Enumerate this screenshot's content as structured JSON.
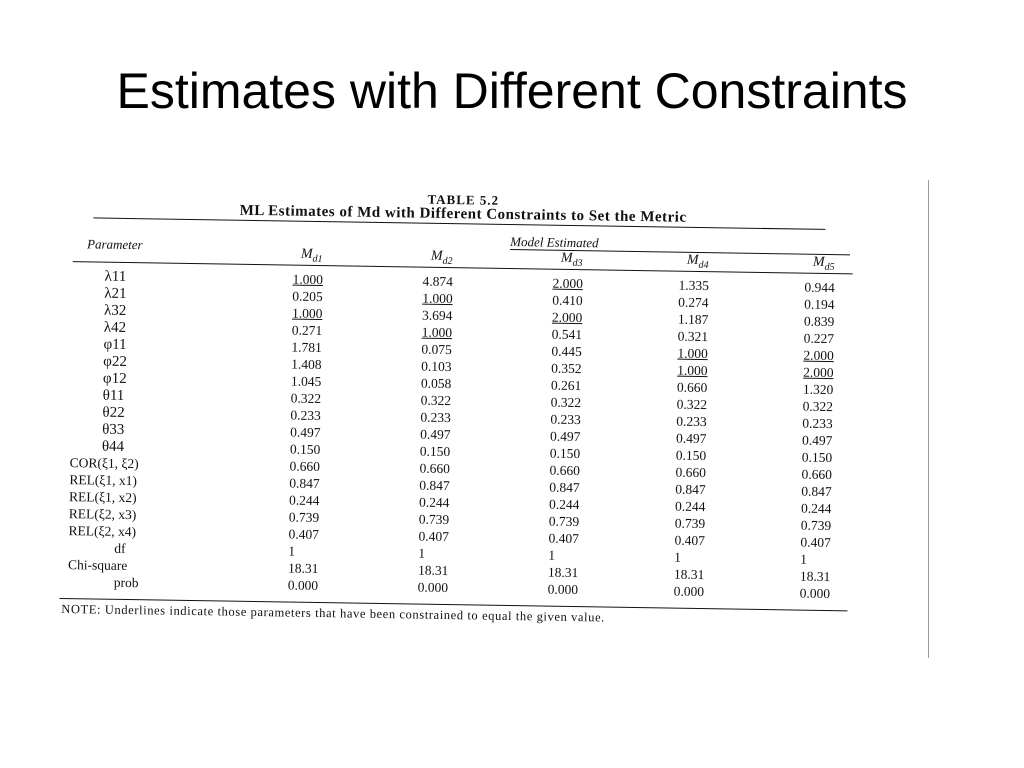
{
  "slide": {
    "title": "Estimates with Different Constraints"
  },
  "table": {
    "caption": "TABLE 5.2",
    "heading": "ML Estimates of Md with Different Constraints to Set the Metric",
    "param_header": "Parameter",
    "group_header": "Model Estimated",
    "models": [
      {
        "base": "M",
        "sub": "d1"
      },
      {
        "base": "M",
        "sub": "d2"
      },
      {
        "base": "M",
        "sub": "d3"
      },
      {
        "base": "M",
        "sub": "d4"
      },
      {
        "base": "M",
        "sub": "d5"
      }
    ],
    "rows": [
      {
        "p": "λ11",
        "v": [
          "1.000",
          "4.874",
          "2.000",
          "1.335",
          "0.944"
        ],
        "u": [
          true,
          false,
          true,
          false,
          false
        ]
      },
      {
        "p": "λ21",
        "v": [
          "0.205",
          "1.000",
          "0.410",
          "0.274",
          "0.194"
        ],
        "u": [
          false,
          true,
          false,
          false,
          false
        ]
      },
      {
        "p": "λ32",
        "v": [
          "1.000",
          "3.694",
          "2.000",
          "1.187",
          "0.839"
        ],
        "u": [
          true,
          false,
          true,
          false,
          false
        ]
      },
      {
        "p": "λ42",
        "v": [
          "0.271",
          "1.000",
          "0.541",
          "0.321",
          "0.227"
        ],
        "u": [
          false,
          true,
          false,
          false,
          false
        ]
      },
      {
        "p": "φ11",
        "v": [
          "1.781",
          "0.075",
          "0.445",
          "1.000",
          "2.000"
        ],
        "u": [
          false,
          false,
          false,
          true,
          true
        ]
      },
      {
        "p": "φ22",
        "v": [
          "1.408",
          "0.103",
          "0.352",
          "1.000",
          "2.000"
        ],
        "u": [
          false,
          false,
          false,
          true,
          true
        ]
      },
      {
        "p": "φ12",
        "v": [
          "1.045",
          "0.058",
          "0.261",
          "0.660",
          "1.320"
        ],
        "u": [
          false,
          false,
          false,
          false,
          false
        ]
      },
      {
        "p": "θ11",
        "v": [
          "0.322",
          "0.322",
          "0.322",
          "0.322",
          "0.322"
        ],
        "u": [
          false,
          false,
          false,
          false,
          false
        ]
      },
      {
        "p": "θ22",
        "v": [
          "0.233",
          "0.233",
          "0.233",
          "0.233",
          "0.233"
        ],
        "u": [
          false,
          false,
          false,
          false,
          false
        ]
      },
      {
        "p": "θ33",
        "v": [
          "0.497",
          "0.497",
          "0.497",
          "0.497",
          "0.497"
        ],
        "u": [
          false,
          false,
          false,
          false,
          false
        ]
      },
      {
        "p": "θ44",
        "v": [
          "0.150",
          "0.150",
          "0.150",
          "0.150",
          "0.150"
        ],
        "u": [
          false,
          false,
          false,
          false,
          false
        ]
      },
      {
        "p": "COR(ξ1, ξ2)",
        "v": [
          "0.660",
          "0.660",
          "0.660",
          "0.660",
          "0.660"
        ],
        "u": [
          false,
          false,
          false,
          false,
          false
        ]
      },
      {
        "p": "REL(ξ1, x1)",
        "v": [
          "0.847",
          "0.847",
          "0.847",
          "0.847",
          "0.847"
        ],
        "u": [
          false,
          false,
          false,
          false,
          false
        ]
      },
      {
        "p": "REL(ξ1, x2)",
        "v": [
          "0.244",
          "0.244",
          "0.244",
          "0.244",
          "0.244"
        ],
        "u": [
          false,
          false,
          false,
          false,
          false
        ]
      },
      {
        "p": "REL(ξ2, x3)",
        "v": [
          "0.739",
          "0.739",
          "0.739",
          "0.739",
          "0.739"
        ],
        "u": [
          false,
          false,
          false,
          false,
          false
        ]
      },
      {
        "p": "REL(ξ2, x4)",
        "v": [
          "0.407",
          "0.407",
          "0.407",
          "0.407",
          "0.407"
        ],
        "u": [
          false,
          false,
          false,
          false,
          false
        ]
      },
      {
        "p": "df",
        "v": [
          "1",
          "1",
          "1",
          "1",
          "1"
        ],
        "u": [
          false,
          false,
          false,
          false,
          false
        ]
      },
      {
        "p": "Chi-square",
        "v": [
          "18.31",
          "18.31",
          "18.31",
          "18.31",
          "18.31"
        ],
        "u": [
          false,
          false,
          false,
          false,
          false
        ]
      },
      {
        "p": "prob",
        "v": [
          "0.000",
          "0.000",
          "0.000",
          "0.000",
          "0.000"
        ],
        "u": [
          false,
          false,
          false,
          false,
          false
        ]
      }
    ],
    "note": "NOTE: Underlines indicate those parameters that have been constrained to equal the given value."
  }
}
